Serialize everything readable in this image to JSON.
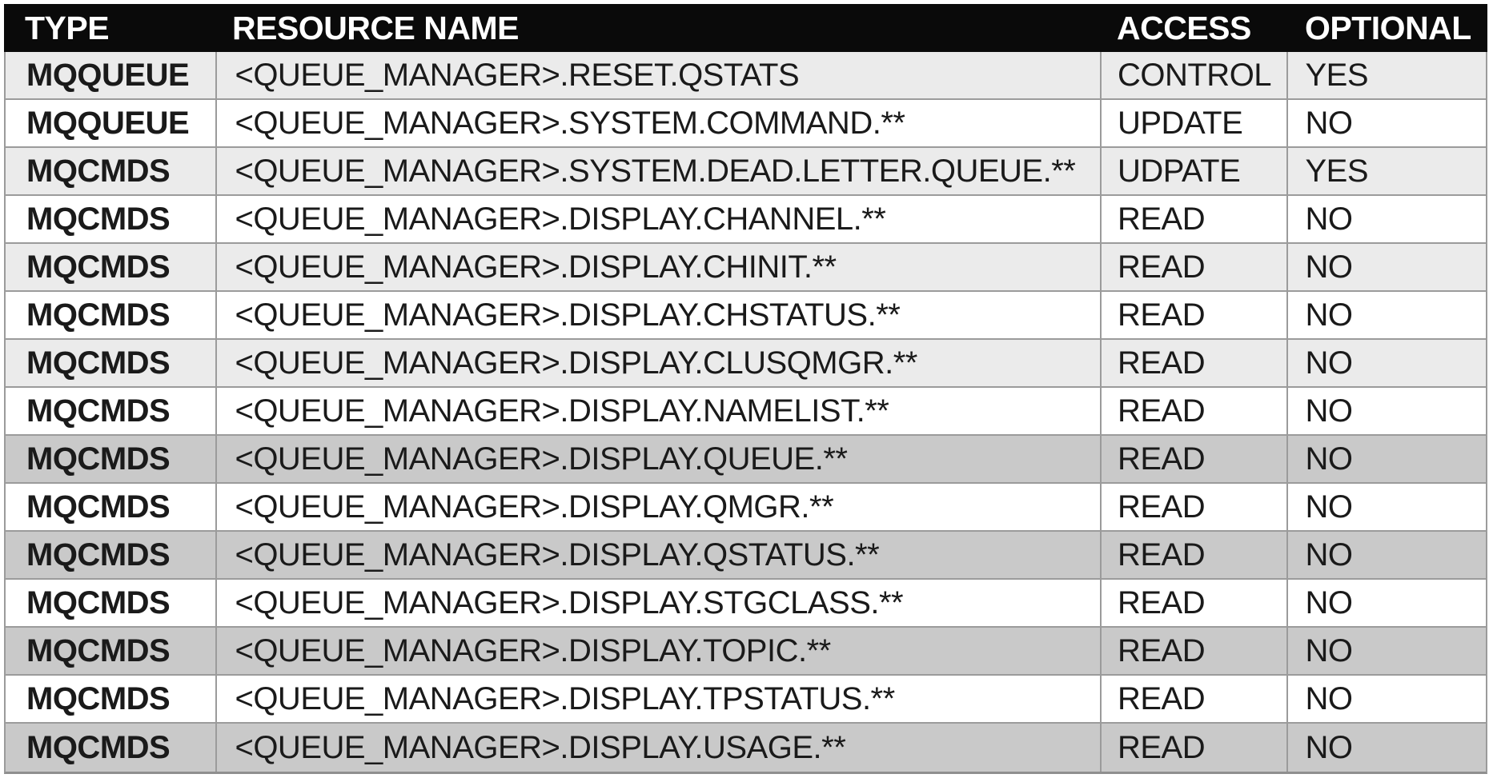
{
  "colors": {
    "header_bg": "#0a0a0a",
    "header_text": "#ffffff",
    "row_light": "#ebebeb",
    "row_dark": "#c9c9c9",
    "row_white": "#ffffff",
    "border": "#9b9b9b",
    "body_text": "#1a1a1a"
  },
  "chart_data": {
    "type": "table",
    "columns": [
      {
        "key": "type",
        "label": "TYPE"
      },
      {
        "key": "resource",
        "label": "RESOURCE NAME"
      },
      {
        "key": "access",
        "label": "ACCESS"
      },
      {
        "key": "optional",
        "label": "OPTIONAL"
      }
    ],
    "rows": [
      {
        "type": "MQQUEUE",
        "resource": "<QUEUE_MANAGER>.RESET.QSTATS",
        "access": "CONTROL",
        "optional": "YES",
        "shade": "light"
      },
      {
        "type": "MQQUEUE",
        "resource": "<QUEUE_MANAGER>.SYSTEM.COMMAND.**",
        "access": "UPDATE",
        "optional": "NO",
        "shade": "white"
      },
      {
        "type": "MQCMDS",
        "resource": "<QUEUE_MANAGER>.SYSTEM.DEAD.LETTER.QUEUE.**",
        "access": "UDPATE",
        "optional": "YES",
        "shade": "light"
      },
      {
        "type": "MQCMDS",
        "resource": "<QUEUE_MANAGER>.DISPLAY.CHANNEL.**",
        "access": "READ",
        "optional": "NO",
        "shade": "white"
      },
      {
        "type": "MQCMDS",
        "resource": "<QUEUE_MANAGER>.DISPLAY.CHINIT.**",
        "access": "READ",
        "optional": "NO",
        "shade": "light"
      },
      {
        "type": "MQCMDS",
        "resource": "<QUEUE_MANAGER>.DISPLAY.CHSTATUS.**",
        "access": "READ",
        "optional": "NO",
        "shade": "white"
      },
      {
        "type": "MQCMDS",
        "resource": "<QUEUE_MANAGER>.DISPLAY.CLUSQMGR.**",
        "access": "READ",
        "optional": "NO",
        "shade": "light"
      },
      {
        "type": "MQCMDS",
        "resource": "<QUEUE_MANAGER>.DISPLAY.NAMELIST.**",
        "access": "READ",
        "optional": "NO",
        "shade": "white"
      },
      {
        "type": "MQCMDS",
        "resource": "<QUEUE_MANAGER>.DISPLAY.QUEUE.**",
        "access": "READ",
        "optional": "NO",
        "shade": "dark"
      },
      {
        "type": "MQCMDS",
        "resource": "<QUEUE_MANAGER>.DISPLAY.QMGR.**",
        "access": "READ",
        "optional": "NO",
        "shade": "white"
      },
      {
        "type": "MQCMDS",
        "resource": "<QUEUE_MANAGER>.DISPLAY.QSTATUS.**",
        "access": "READ",
        "optional": "NO",
        "shade": "dark"
      },
      {
        "type": "MQCMDS",
        "resource": "<QUEUE_MANAGER>.DISPLAY.STGCLASS.**",
        "access": "READ",
        "optional": "NO",
        "shade": "white"
      },
      {
        "type": "MQCMDS",
        "resource": "<QUEUE_MANAGER>.DISPLAY.TOPIC.**",
        "access": "READ",
        "optional": "NO",
        "shade": "dark"
      },
      {
        "type": "MQCMDS",
        "resource": "<QUEUE_MANAGER>.DISPLAY.TPSTATUS.**",
        "access": "READ",
        "optional": "NO",
        "shade": "white"
      },
      {
        "type": "MQCMDS",
        "resource": "<QUEUE_MANAGER>.DISPLAY.USAGE.**",
        "access": "READ",
        "optional": "NO",
        "shade": "dark"
      }
    ]
  }
}
